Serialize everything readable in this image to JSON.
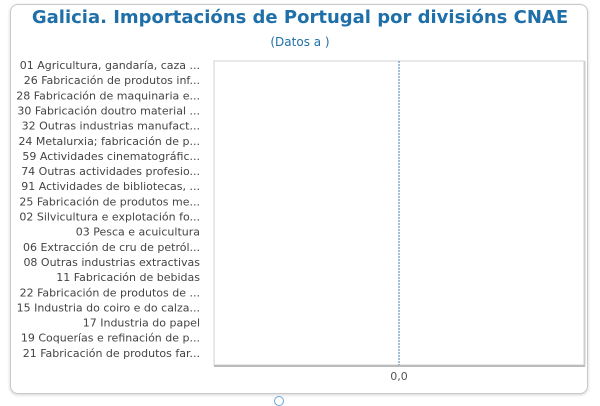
{
  "chart_data": {
    "type": "bar",
    "orientation": "horizontal",
    "title": "Galicia. Importacións de Portugal por divisións CNAE",
    "subtitle": "(Datos a )",
    "categories": [
      "01 Agricultura, gandaría, caza ...",
      "26 Fabricación de produtos inf...",
      "28 Fabricación de maquinaria e...",
      "30 Fabricación doutro material ...",
      "32 Outras industrias manufact...",
      "24 Metalurxia; fabricación de p...",
      "59 Actividades cinematográfic...",
      "74 Outras actividades profesio...",
      "91 Actividades de bibliotecas, ...",
      "25 Fabricación de produtos me...",
      "02 Silvicultura e explotación fo...",
      "03 Pesca e acuicultura",
      "06 Extracción de cru de petról...",
      "08 Outras industrias extractivas",
      "11 Fabricación de bebidas",
      "22 Fabricación de produtos de ...",
      "15 Industria do coiro e do calza...",
      "17 Industria do papel",
      "19 Coquerías e refinación de p...",
      "21 Fabricación de produtos far..."
    ],
    "values": [
      0,
      0,
      0,
      0,
      0,
      0,
      0,
      0,
      0,
      0,
      0,
      0,
      0,
      0,
      0,
      0,
      0,
      0,
      0,
      0
    ],
    "x_ticks": [
      "0,0"
    ],
    "xlim": [
      -1,
      1
    ],
    "zero_line_color": "#4a7fb5",
    "bar_color": "#1f6fa8",
    "title_color": "#1f6fa8"
  }
}
